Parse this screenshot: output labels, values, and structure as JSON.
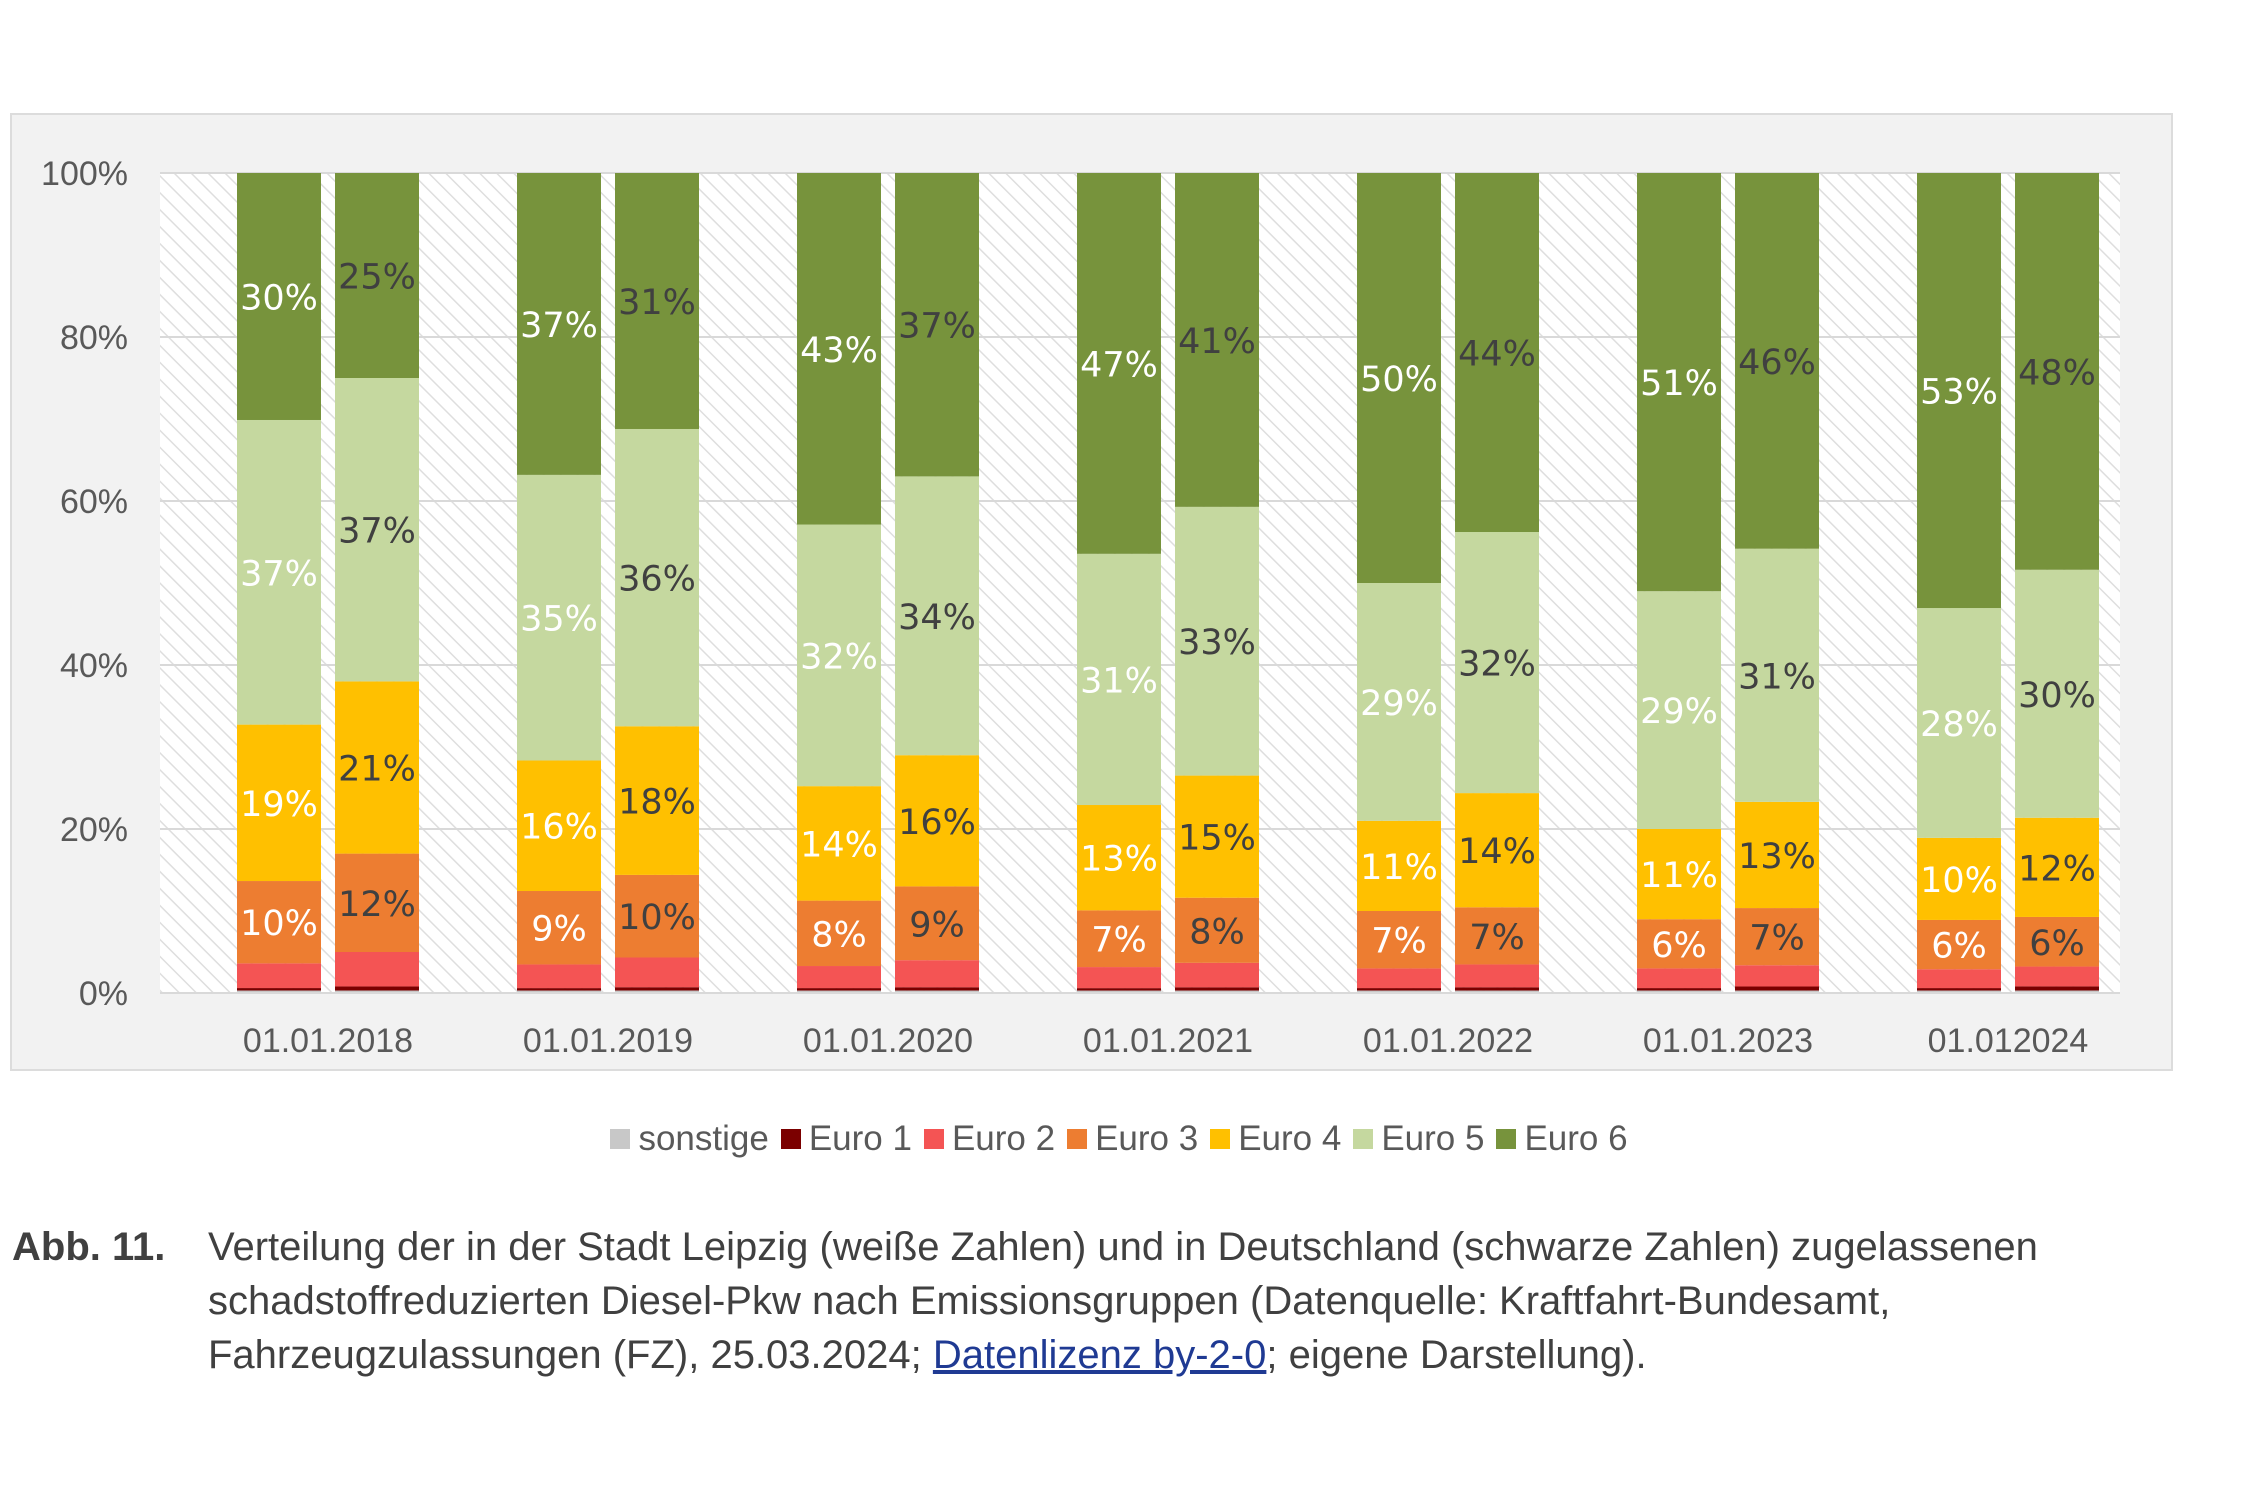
{
  "chart_data": {
    "type": "bar",
    "stacked": true,
    "percent_axis": true,
    "categories": [
      "01.01.2018",
      "01.01.2019",
      "01.01.2020",
      "01.01.2021",
      "01.01.2022",
      "01.01.2023",
      "01.012024"
    ],
    "bar_groups": [
      "Stadt Leipzig",
      "Deutschland"
    ],
    "y_ticks": [
      "0%",
      "20%",
      "40%",
      "60%",
      "80%",
      "100%"
    ],
    "ylim": [
      0,
      100
    ],
    "grid": true,
    "legend_position": "bottom",
    "series": [
      {
        "name": "sonstige",
        "color": "#c8c8c8",
        "leipzig": [
          0.3,
          0.3,
          0.3,
          0.3,
          0.3,
          0.3,
          0.3
        ],
        "deutschland": [
          0.3,
          0.3,
          0.3,
          0.3,
          0.3,
          0.3,
          0.3
        ]
      },
      {
        "name": "Euro 1",
        "color": "#7b0000",
        "leipzig": [
          0.3,
          0.3,
          0.3,
          0.3,
          0.3,
          0.3,
          0.3
        ],
        "deutschland": [
          0.5,
          0.4,
          0.4,
          0.4,
          0.4,
          0.5,
          0.5
        ]
      },
      {
        "name": "Euro 2",
        "color": "#f45454",
        "leipzig": [
          3.0,
          2.9,
          2.7,
          2.6,
          2.4,
          2.4,
          2.3
        ],
        "deutschland": [
          4.2,
          3.6,
          3.3,
          3.0,
          2.8,
          2.6,
          2.4
        ]
      },
      {
        "name": "Euro 3",
        "color": "#ed7d31",
        "leipzig": [
          10,
          9,
          8,
          7,
          7,
          6,
          6
        ],
        "deutschland": [
          12,
          10,
          9,
          8,
          7,
          7,
          6
        ]
      },
      {
        "name": "Euro 4",
        "color": "#ffc000",
        "leipzig": [
          19,
          16,
          14,
          13,
          11,
          11,
          10
        ],
        "deutschland": [
          21,
          18,
          16,
          15,
          14,
          13,
          12
        ]
      },
      {
        "name": "Euro 5",
        "color": "#c5d89f",
        "leipzig": [
          37,
          35,
          32,
          31,
          29,
          29,
          28
        ],
        "deutschland": [
          37,
          36,
          34,
          33,
          32,
          31,
          30
        ]
      },
      {
        "name": "Euro 6",
        "color": "#77933c",
        "leipzig": [
          30,
          37,
          43,
          47,
          50,
          51,
          53
        ],
        "deutschland": [
          25,
          31,
          37,
          41,
          44,
          46,
          48
        ]
      }
    ],
    "data_labels": {
      "Euro 3": {
        "leipzig": [
          "10%",
          "9%",
          "8%",
          "7%",
          "7%",
          "6%",
          "6%"
        ],
        "deutschland": [
          "12%",
          "10%",
          "9%",
          "8%",
          "7%",
          "7%",
          "6%"
        ]
      },
      "Euro 4": {
        "leipzig": [
          "19%",
          "16%",
          "14%",
          "13%",
          "11%",
          "11%",
          "10%"
        ],
        "deutschland": [
          "21%",
          "18%",
          "16%",
          "15%",
          "14%",
          "13%",
          "12%"
        ]
      },
      "Euro 5": {
        "leipzig": [
          "37%",
          "35%",
          "32%",
          "31%",
          "29%",
          "29%",
          "28%"
        ],
        "deutschland": [
          "37%",
          "36%",
          "34%",
          "33%",
          "32%",
          "31%",
          "30%"
        ]
      },
      "Euro 6": {
        "leipzig": [
          "30%",
          "37%",
          "43%",
          "47%",
          "50%",
          "51%",
          "53%"
        ],
        "deutschland": [
          "25%",
          "31%",
          "37%",
          "41%",
          "44%",
          "46%",
          "48%"
        ]
      }
    },
    "label_colors": {
      "leipzig": "#ffffff",
      "deutschland": "#404040"
    }
  },
  "caption": {
    "label": "Abb. 11.",
    "text_before_link": "Verteilung der in der Stadt Leipzig (weiße Zahlen) und in Deutschland (schwarze Zahlen) zugelassenen schadstoffreduzierten Diesel-Pkw nach Emissionsgruppen (Datenquelle: Kraftfahrt-Bundesamt, Fahrzeugzulassungen (FZ), 25.03.2024; ",
    "link_text": "Datenlizenz by-2-0",
    "text_after_link": "; eigene Darstellung)."
  }
}
